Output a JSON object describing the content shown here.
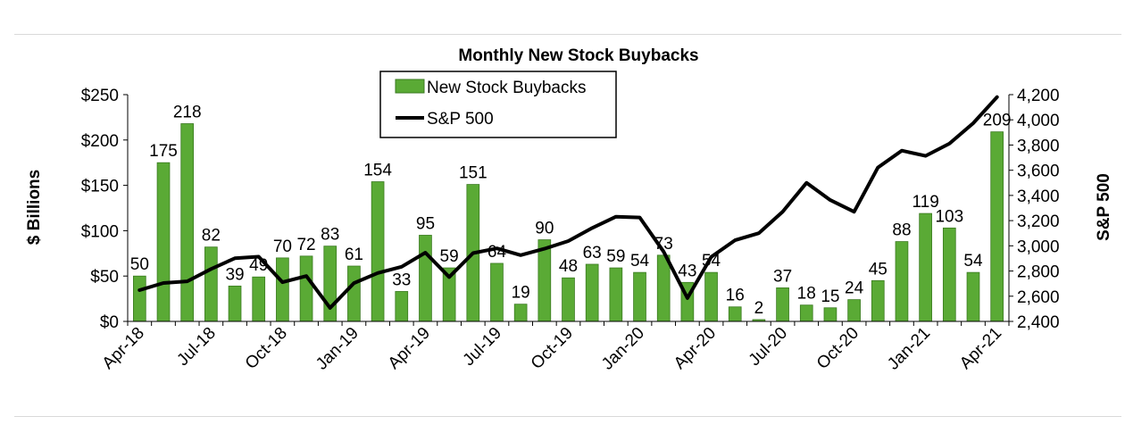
{
  "chart_data": {
    "type": "bar",
    "title": "Monthly New Stock Buybacks",
    "ylabel": "$ Billions",
    "y2label": "S&P 500",
    "ylim": [
      0,
      250
    ],
    "y2lim": [
      2400,
      4200
    ],
    "yticks": [
      "$0",
      "$50",
      "$100",
      "$150",
      "$200",
      "$250"
    ],
    "y2ticks": [
      "2,400",
      "2,600",
      "2,800",
      "3,000",
      "3,200",
      "3,400",
      "3,600",
      "3,800",
      "4,000",
      "4,200"
    ],
    "xtick_labels": [
      "Apr-18",
      "Jul-18",
      "Oct-18",
      "Jan-19",
      "Apr-19",
      "Jul-19",
      "Oct-19",
      "Jan-20",
      "Apr-20",
      "Jul-20",
      "Oct-20",
      "Jan-21",
      "Apr-21"
    ],
    "categories": [
      "Apr-18",
      "May-18",
      "Jun-18",
      "Jul-18",
      "Aug-18",
      "Sep-18",
      "Oct-18",
      "Nov-18",
      "Dec-18",
      "Jan-19",
      "Feb-19",
      "Mar-19",
      "Apr-19",
      "May-19",
      "Jun-19",
      "Jul-19",
      "Aug-19",
      "Sep-19",
      "Oct-19",
      "Nov-19",
      "Dec-19",
      "Jan-20",
      "Feb-20",
      "Mar-20",
      "Apr-20",
      "May-20",
      "Jun-20",
      "Jul-20",
      "Aug-20",
      "Sep-20",
      "Oct-20",
      "Nov-20",
      "Dec-20",
      "Jan-21",
      "Feb-21",
      "Mar-21",
      "Apr-21"
    ],
    "series": [
      {
        "name": "New Stock Buybacks",
        "type": "bar",
        "axis": "left",
        "color": "#5aaa35",
        "values": [
          50,
          175,
          218,
          82,
          39,
          49,
          70,
          72,
          83,
          61,
          154,
          33,
          95,
          59,
          151,
          64,
          19,
          90,
          48,
          63,
          59,
          54,
          73,
          43,
          54,
          16,
          2,
          37,
          18,
          15,
          24,
          45,
          88,
          119,
          103,
          54,
          209
        ]
      },
      {
        "name": "S&P 500",
        "type": "line",
        "axis": "right",
        "color": "#000000",
        "values": [
          2648,
          2705,
          2718,
          2816,
          2901,
          2914,
          2711,
          2760,
          2507,
          2704,
          2784,
          2834,
          2946,
          2752,
          2942,
          2980,
          2926,
          2977,
          3038,
          3141,
          3231,
          3225,
          2954,
          2585,
          2912,
          3044,
          3100,
          3271,
          3500,
          3363,
          3270,
          3622,
          3756,
          3714,
          3811,
          3973,
          4181
        ]
      }
    ],
    "legend": {
      "position": "top-center"
    },
    "grid": false
  }
}
